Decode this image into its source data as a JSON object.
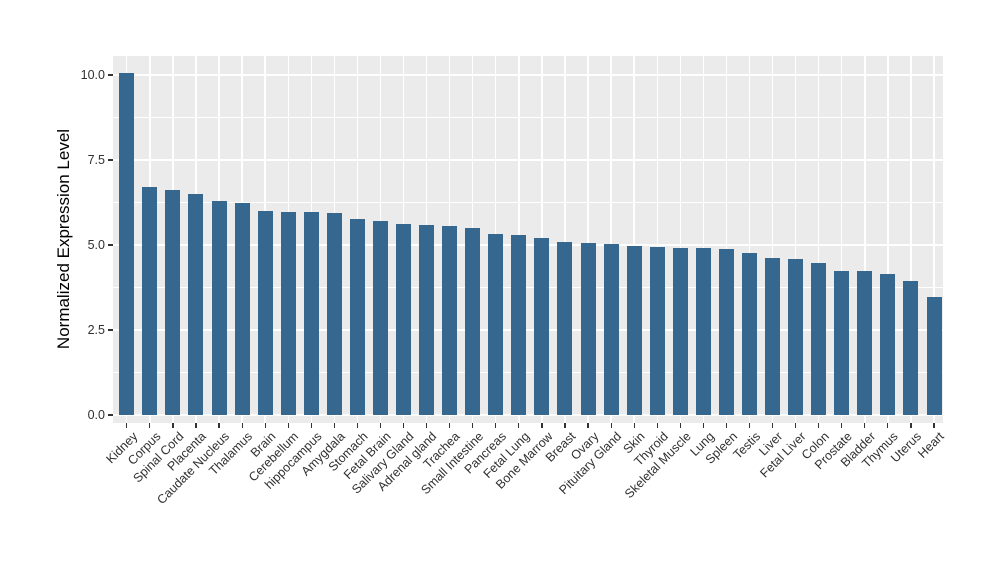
{
  "chart_data": {
    "type": "bar",
    "title": "",
    "xlabel": "",
    "ylabel": "Normalized Expression Level",
    "categories": [
      "Kidney",
      "Corpus",
      "Spinal Cord",
      "Placenta",
      "Caudate Nucleus",
      "Thalamus",
      "Brain",
      "Cerebellum",
      "hippocampus",
      "Amygdala",
      "Stomach",
      "Fetal Brain",
      "Salivary Gland",
      "Adrenal gland",
      "Trachea",
      "Small Intestine",
      "Pancreas",
      "Fetal Lung",
      "Bone Marrow",
      "Breast",
      "Ovary",
      "Pituitary Gland",
      "Skin",
      "Thyroid",
      "Skeletal Muscle",
      "Lung",
      "Spleen",
      "Testis",
      "Liver",
      "Fetal Liver",
      "Colon",
      "Prostate",
      "Bladder",
      "Thymus",
      "Uterus",
      "Heart"
    ],
    "values": [
      10.05,
      6.72,
      6.63,
      6.5,
      6.3,
      6.24,
      6.01,
      5.98,
      5.96,
      5.95,
      5.77,
      5.71,
      5.63,
      5.58,
      5.56,
      5.51,
      5.32,
      5.28,
      5.21,
      5.1,
      5.07,
      5.02,
      4.96,
      4.93,
      4.91,
      4.9,
      4.87,
      4.77,
      4.62,
      4.58,
      4.48,
      4.24,
      4.23,
      4.16,
      3.94,
      3.48
    ],
    "ylim": [
      0,
      10.55
    ],
    "yticks": [
      0,
      2.5,
      5,
      7.5,
      10
    ],
    "ytick_labels": [
      "0.0",
      "2.5",
      "5.0",
      "7.5",
      "10.0"
    ],
    "yminor_ticks": [
      1.25,
      3.75,
      6.25,
      8.75
    ],
    "grid": true,
    "legend": false,
    "bar_color": "#36678F",
    "panel_bg": "#EBEBEB",
    "grid_color": "#FFFFFF",
    "tick_color": "#333333",
    "text_color": "#303030"
  }
}
